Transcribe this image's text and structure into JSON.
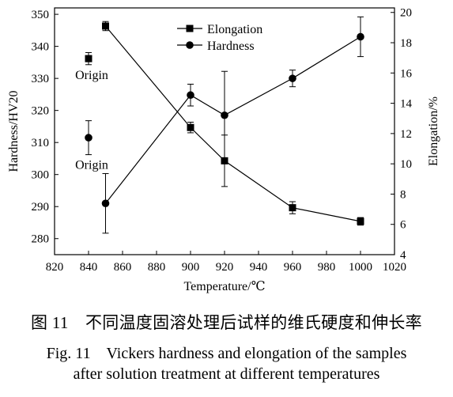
{
  "chart_data": {
    "type": "line",
    "xlabel": "Temperature/℃",
    "ylabel_left": "Hardness/HV20",
    "ylabel_right": "Elongation/%",
    "xlim": [
      820,
      1020
    ],
    "xticks": [
      820,
      840,
      860,
      880,
      900,
      920,
      940,
      960,
      980,
      1000,
      1020
    ],
    "ylim_left": [
      275,
      352
    ],
    "yticks_left": [
      280,
      290,
      300,
      310,
      320,
      330,
      340,
      350
    ],
    "ylim_right": [
      4,
      20.3
    ],
    "yticks_right": [
      4,
      6,
      8,
      10,
      12,
      14,
      16,
      18,
      20
    ],
    "legend_position": "top-center",
    "series": [
      {
        "name": "Elongation",
        "marker": "square",
        "axis": "right",
        "x": [
          850,
          900,
          920,
          960,
          1000
        ],
        "y": [
          19.1,
          12.4,
          10.2,
          7.1,
          6.2
        ],
        "err": [
          0.3,
          0.35,
          1.7,
          0.4,
          0.25
        ]
      },
      {
        "name": "Hardness",
        "marker": "circle",
        "axis": "left",
        "x": [
          850,
          900,
          920,
          960,
          1000
        ],
        "y": [
          291.0,
          324.8,
          318.5,
          330.0,
          343.0
        ],
        "err": [
          9.3,
          3.4,
          13.7,
          2.6,
          6.2
        ]
      }
    ],
    "origin_points": [
      {
        "label": "Origin",
        "series": "Elongation",
        "x": 840,
        "y": 16.95,
        "err": 0.4
      },
      {
        "label": "Origin",
        "series": "Hardness",
        "x": 840,
        "y": 311.5,
        "err": 5.3
      }
    ]
  },
  "caption": {
    "cn": "图 11　不同温度固溶处理后试样的维氏硬度和伸长率",
    "en_line1": "Fig. 11　Vickers hardness and elongation of the samples",
    "en_line2": "after solution treatment at different temperatures"
  }
}
